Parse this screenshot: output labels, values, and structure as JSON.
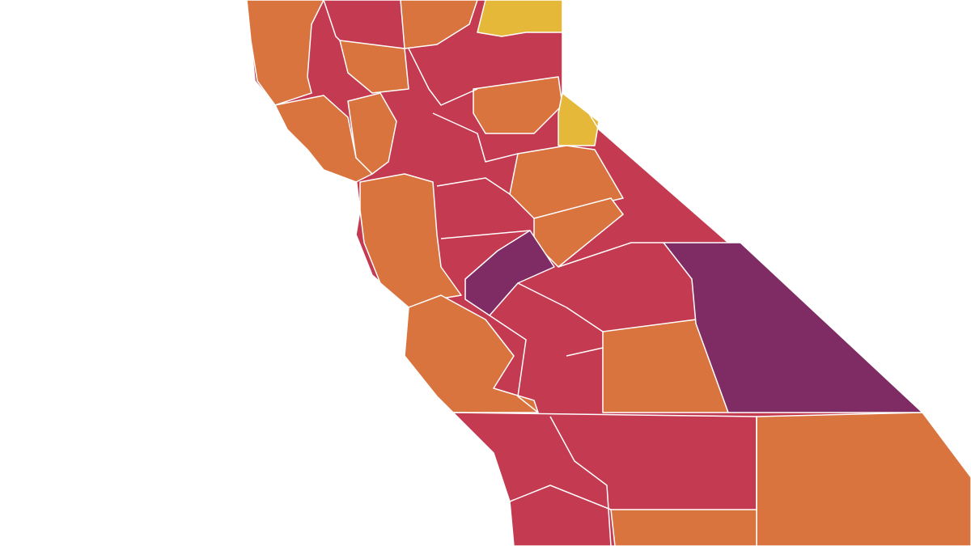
{
  "map": {
    "palette": [
      "#c43a50",
      "#d9743f",
      "#e6b83a",
      "#7f2b64"
    ]
  }
}
